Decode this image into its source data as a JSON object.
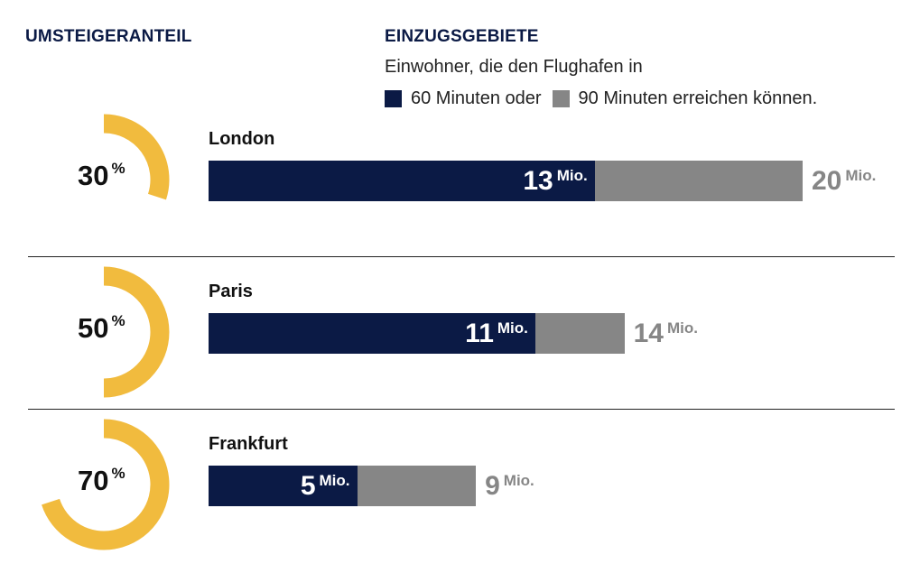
{
  "header": {
    "left_title": "UMSTEIGERANTEIL",
    "right_title": "EINZUGSGEBIETE",
    "subtitle": "Einwohner, die den Flughafen in",
    "legend": [
      {
        "label": "60 Minuten oder",
        "color": "#0b1a45"
      },
      {
        "label": "90 Minuten erreichen können.",
        "color": "#868686"
      }
    ]
  },
  "chart_data": {
    "type": "bar",
    "categories": [
      "London",
      "Paris",
      "Frankfurt"
    ],
    "series": [
      {
        "name": "60 Minuten oder",
        "values": [
          13,
          11,
          5
        ]
      },
      {
        "name": "90 Minuten erreichen können.",
        "values": [
          20,
          14,
          9
        ]
      }
    ],
    "units": "Mio.",
    "percent_symbol": "%",
    "umsteigeranteil": [
      30,
      50,
      70
    ],
    "colors": {
      "navy": "#0b1a45",
      "gray": "#868686",
      "gold": "#f1bb3e"
    }
  },
  "rows": [
    {
      "city": "London",
      "pct": "30",
      "v60": "13",
      "v90": "20"
    },
    {
      "city": "Paris",
      "pct": "50",
      "v60": "11",
      "v90": "14"
    },
    {
      "city": "Frankfurt",
      "pct": "70",
      "v60": "5",
      "v90": "9"
    }
  ]
}
